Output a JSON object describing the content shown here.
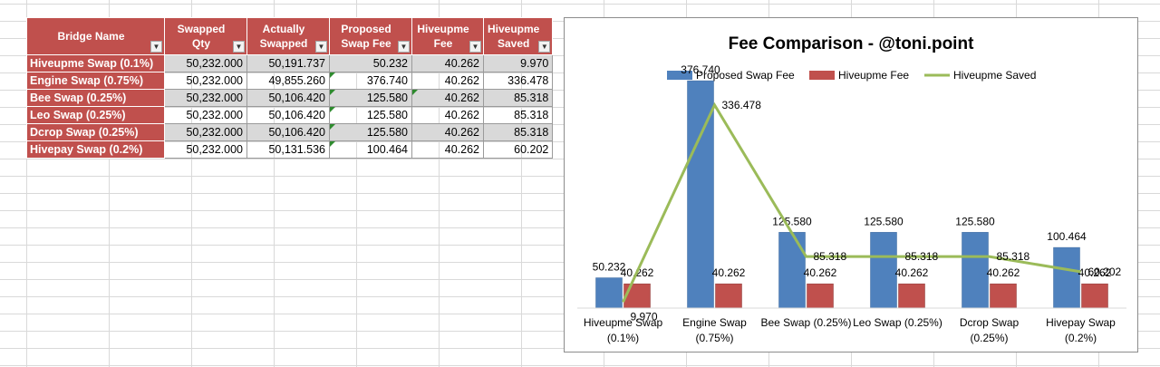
{
  "table": {
    "headers": [
      "Bridge Name",
      "Swapped Qty",
      "Actually Swapped",
      "Proposed Swap Fee",
      "Hiveupme Fee",
      "Hiveupme Saved"
    ],
    "rows": [
      {
        "name": "Hiveupme Swap (0.1%)",
        "swapped_qty": "50,232.000",
        "actually_swapped": "50,191.737",
        "proposed_fee": "50.232",
        "hiveupme_fee": "40.262",
        "hiveupme_saved": "9.970"
      },
      {
        "name": "Engine Swap (0.75%)",
        "swapped_qty": "50,232.000",
        "actually_swapped": "49,855.260",
        "proposed_fee": "376.740",
        "hiveupme_fee": "40.262",
        "hiveupme_saved": "336.478"
      },
      {
        "name": "Bee Swap (0.25%)",
        "swapped_qty": "50,232.000",
        "actually_swapped": "50,106.420",
        "proposed_fee": "125.580",
        "hiveupme_fee": "40.262",
        "hiveupme_saved": "85.318"
      },
      {
        "name": "Leo Swap (0.25%)",
        "swapped_qty": "50,232.000",
        "actually_swapped": "50,106.420",
        "proposed_fee": "125.580",
        "hiveupme_fee": "40.262",
        "hiveupme_saved": "85.318"
      },
      {
        "name": "Dcrop Swap (0.25%)",
        "swapped_qty": "50,232.000",
        "actually_swapped": "50,106.420",
        "proposed_fee": "125.580",
        "hiveupme_fee": "40.262",
        "hiveupme_saved": "85.318"
      },
      {
        "name": "Hivepay Swap (0.2%)",
        "swapped_qty": "50,232.000",
        "actually_swapped": "50,131.536",
        "proposed_fee": "100.464",
        "hiveupme_fee": "40.262",
        "hiveupme_saved": "60.202"
      }
    ]
  },
  "chart_data": {
    "type": "bar",
    "title": "Fee Comparison - @toni.point",
    "categories": [
      "Hiveupme Swap (0.1%)",
      "Engine Swap (0.75%)",
      "Bee Swap (0.25%)",
      "Leo Swap (0.25%)",
      "Dcrop Swap (0.25%)",
      "Hivepay Swap (0.2%)"
    ],
    "series": [
      {
        "name": "Proposed Swap Fee",
        "kind": "bar",
        "color": "#4f81bd",
        "values": [
          50.232,
          376.74,
          125.58,
          125.58,
          125.58,
          100.464
        ]
      },
      {
        "name": "Hiveupme Fee",
        "kind": "bar",
        "color": "#c0504d",
        "values": [
          40.262,
          40.262,
          40.262,
          40.262,
          40.262,
          40.262
        ]
      },
      {
        "name": "Hiveupme Saved",
        "kind": "line",
        "color": "#9bbb59",
        "values": [
          9.97,
          336.478,
          85.318,
          85.318,
          85.318,
          60.202
        ]
      }
    ],
    "ylim": [
      0,
      400
    ],
    "legend": "top",
    "grid": false
  }
}
